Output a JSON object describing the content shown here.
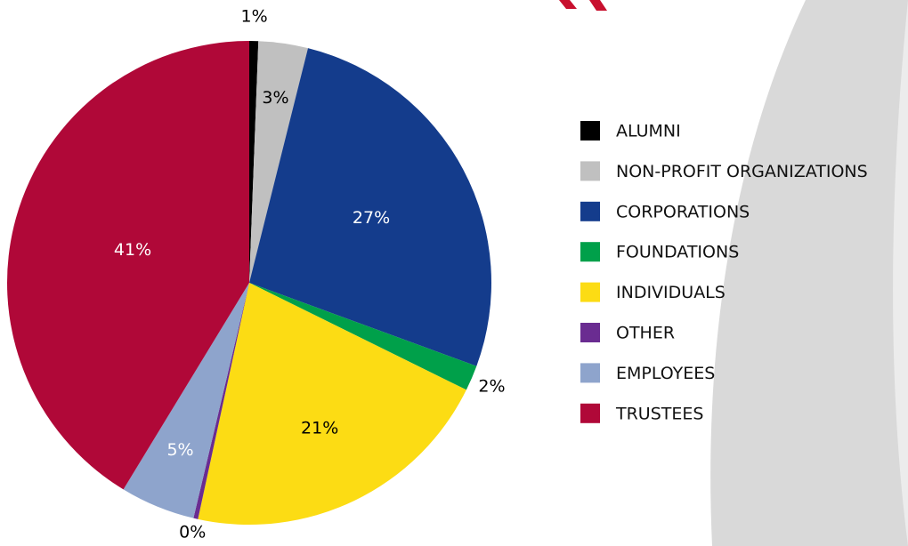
{
  "chart_data": {
    "type": "pie",
    "categories": [
      "ALUMNI",
      "NON-PROFIT ORGANIZATIONS",
      "CORPORATIONS",
      "FOUNDATIONS",
      "INDIVIDUALS",
      "OTHER",
      "EMPLOYEES",
      "TRUSTEES"
    ],
    "values": [
      0.6,
      3.3,
      26.7,
      1.7,
      21.1,
      0.3,
      5,
      41.3
    ],
    "value_labels": [
      "1%",
      "3%",
      "27%",
      "2%",
      "21%",
      "0%",
      "5%",
      "41%"
    ],
    "colors": [
      "#000000",
      "#c0c0c0",
      "#143c8c",
      "#00a04a",
      "#fcdc14",
      "#6a2c91",
      "#8ea4cc",
      "#b00838"
    ],
    "legend": "right"
  }
}
